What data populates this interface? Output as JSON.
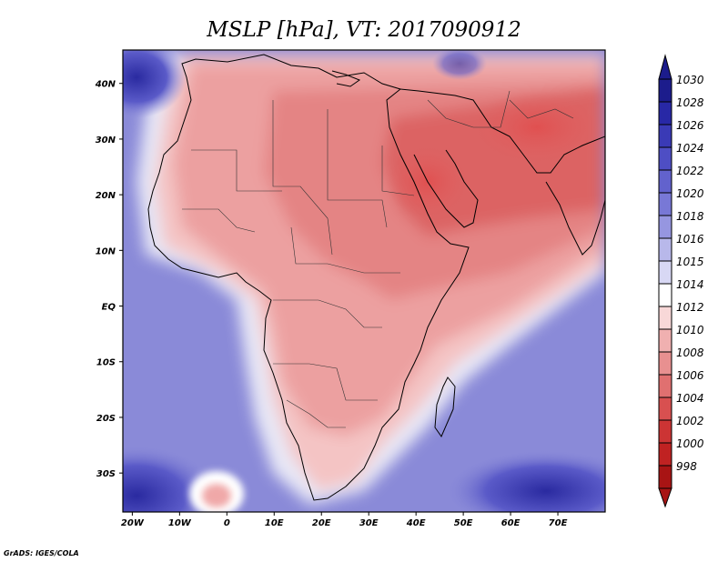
{
  "title": "MSLP [hPa], VT: 2017090912",
  "credit": "GrADS: IGES/COLA",
  "x_ticks": [
    {
      "label": "20W",
      "lon": -20
    },
    {
      "label": "10W",
      "lon": -10
    },
    {
      "label": "0",
      "lon": 0
    },
    {
      "label": "10E",
      "lon": 10
    },
    {
      "label": "20E",
      "lon": 20
    },
    {
      "label": "30E",
      "lon": 30
    },
    {
      "label": "40E",
      "lon": 40
    },
    {
      "label": "50E",
      "lon": 50
    },
    {
      "label": "60E",
      "lon": 60
    },
    {
      "label": "70E",
      "lon": 70
    }
  ],
  "y_ticks": [
    {
      "label": "40N",
      "lat": 40
    },
    {
      "label": "30N",
      "lat": 30
    },
    {
      "label": "20N",
      "lat": 20
    },
    {
      "label": "10N",
      "lat": 10
    },
    {
      "label": "EQ",
      "lat": 0
    },
    {
      "label": "10S",
      "lat": -10
    },
    {
      "label": "20S",
      "lat": -20
    },
    {
      "label": "30S",
      "lat": -30
    }
  ],
  "chart_data": {
    "type": "heatmap",
    "title": "MSLP [hPa], VT: 2017090912",
    "variable": "Mean sea level pressure",
    "units": "hPa",
    "valid_time": "2017090912",
    "lon_range": [
      -22,
      80
    ],
    "lat_range": [
      -37,
      46
    ],
    "colorbar": {
      "levels": [
        "1030",
        "1028",
        "1026",
        "1024",
        "1022",
        "1020",
        "1018",
        "1016",
        "1015",
        "1014",
        "1012",
        "1010",
        "1008",
        "1006",
        "1004",
        "1002",
        "1000",
        "998"
      ],
      "colors": [
        "#1c1c8c",
        "#2828a6",
        "#3a3ab6",
        "#4e4ec4",
        "#6262cd",
        "#7878d6",
        "#9696e0",
        "#b8b8ea",
        "#d8d8f4",
        "#ffffff",
        "#f8d8d8",
        "#f0b0b0",
        "#e89090",
        "#e07070",
        "#d85050",
        "#cc3434",
        "#c02222",
        "#a81414"
      ]
    }
  }
}
